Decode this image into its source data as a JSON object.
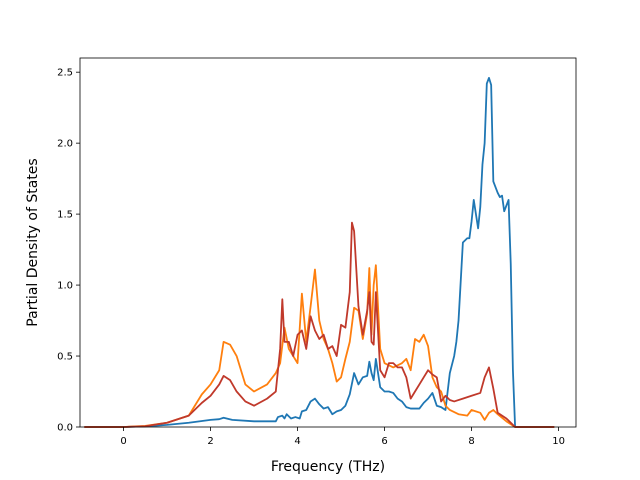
{
  "chart_data": {
    "type": "line",
    "title": "",
    "xlabel": "Frequency (THz)",
    "ylabel": "Partial Density of States",
    "xlim": [
      -1.0,
      10.4
    ],
    "ylim": [
      0,
      2.6
    ],
    "xticks": [
      0,
      2,
      4,
      6,
      8,
      10
    ],
    "yticks": [
      0.0,
      0.5,
      1.0,
      1.5,
      2.0,
      2.5
    ],
    "grid": false,
    "legend": "none",
    "series": [
      {
        "color": "#1f77b4",
        "x": [
          -0.9,
          0.0,
          0.5,
          1.0,
          1.5,
          2.0,
          2.2,
          2.3,
          2.5,
          3.0,
          3.5,
          3.55,
          3.65,
          3.7,
          3.75,
          3.85,
          3.95,
          4.05,
          4.1,
          4.2,
          4.3,
          4.4,
          4.5,
          4.6,
          4.7,
          4.8,
          4.9,
          5.0,
          5.1,
          5.2,
          5.3,
          5.4,
          5.5,
          5.6,
          5.65,
          5.7,
          5.75,
          5.8,
          5.9,
          6.0,
          6.1,
          6.2,
          6.3,
          6.4,
          6.5,
          6.6,
          6.7,
          6.8,
          6.9,
          7.0,
          7.1,
          7.2,
          7.3,
          7.4,
          7.5,
          7.6,
          7.65,
          7.7,
          7.8,
          7.9,
          7.95,
          8.0,
          8.05,
          8.1,
          8.15,
          8.2,
          8.25,
          8.3,
          8.35,
          8.4,
          8.45,
          8.5,
          8.6,
          8.65,
          8.7,
          8.75,
          8.8,
          8.85,
          8.9,
          8.95,
          9.0,
          9.9
        ],
        "y": [
          0.0,
          0.0,
          0.005,
          0.015,
          0.03,
          0.05,
          0.055,
          0.065,
          0.05,
          0.04,
          0.04,
          0.07,
          0.08,
          0.06,
          0.09,
          0.06,
          0.07,
          0.06,
          0.11,
          0.12,
          0.18,
          0.2,
          0.16,
          0.13,
          0.14,
          0.09,
          0.11,
          0.12,
          0.15,
          0.23,
          0.38,
          0.3,
          0.35,
          0.36,
          0.46,
          0.38,
          0.33,
          0.48,
          0.28,
          0.25,
          0.25,
          0.24,
          0.2,
          0.18,
          0.14,
          0.13,
          0.13,
          0.13,
          0.17,
          0.2,
          0.24,
          0.15,
          0.14,
          0.12,
          0.38,
          0.5,
          0.6,
          0.75,
          1.3,
          1.33,
          1.33,
          1.45,
          1.6,
          1.5,
          1.4,
          1.55,
          1.85,
          2.0,
          2.42,
          2.46,
          2.41,
          1.73,
          1.65,
          1.62,
          1.63,
          1.52,
          1.56,
          1.6,
          1.15,
          0.4,
          0.0,
          0.0
        ]
      },
      {
        "color": "#ff7f0e",
        "x": [
          -0.9,
          0.0,
          0.5,
          1.0,
          1.5,
          1.8,
          2.0,
          2.2,
          2.3,
          2.45,
          2.6,
          2.8,
          3.0,
          3.3,
          3.5,
          3.6,
          3.7,
          3.8,
          3.9,
          4.0,
          4.1,
          4.2,
          4.3,
          4.4,
          4.5,
          4.6,
          4.7,
          4.8,
          4.9,
          5.0,
          5.1,
          5.2,
          5.3,
          5.4,
          5.5,
          5.6,
          5.65,
          5.7,
          5.75,
          5.8,
          5.9,
          6.0,
          6.2,
          6.4,
          6.5,
          6.6,
          6.7,
          6.8,
          6.9,
          7.0,
          7.1,
          7.2,
          7.3,
          7.4,
          7.5,
          7.7,
          7.9,
          8.0,
          8.2,
          8.3,
          8.4,
          8.5,
          8.6,
          8.8,
          9.0,
          9.9
        ],
        "y": [
          0.0,
          0.0,
          0.008,
          0.03,
          0.08,
          0.23,
          0.3,
          0.4,
          0.6,
          0.58,
          0.5,
          0.3,
          0.25,
          0.3,
          0.38,
          0.45,
          0.7,
          0.55,
          0.5,
          0.45,
          0.94,
          0.6,
          0.85,
          1.11,
          0.75,
          0.62,
          0.55,
          0.45,
          0.32,
          0.35,
          0.48,
          0.6,
          0.84,
          0.82,
          0.62,
          0.8,
          1.12,
          0.65,
          1.0,
          1.14,
          0.55,
          0.45,
          0.42,
          0.45,
          0.48,
          0.4,
          0.62,
          0.6,
          0.65,
          0.57,
          0.35,
          0.28,
          0.25,
          0.15,
          0.12,
          0.09,
          0.08,
          0.12,
          0.1,
          0.05,
          0.1,
          0.12,
          0.09,
          0.04,
          0.0,
          0.0
        ]
      },
      {
        "color": "#c0392b",
        "x": [
          -0.9,
          0.0,
          0.5,
          1.0,
          1.5,
          1.8,
          2.0,
          2.2,
          2.3,
          2.45,
          2.6,
          2.8,
          3.0,
          3.3,
          3.5,
          3.6,
          3.65,
          3.7,
          3.8,
          3.9,
          4.0,
          4.1,
          4.2,
          4.3,
          4.4,
          4.5,
          4.6,
          4.7,
          4.8,
          4.9,
          5.0,
          5.1,
          5.2,
          5.25,
          5.3,
          5.4,
          5.5,
          5.6,
          5.65,
          5.7,
          5.75,
          5.8,
          5.9,
          6.0,
          6.1,
          6.2,
          6.3,
          6.4,
          6.5,
          6.6,
          6.7,
          6.8,
          6.9,
          7.0,
          7.1,
          7.2,
          7.3,
          7.4,
          7.5,
          7.6,
          7.8,
          8.0,
          8.2,
          8.3,
          8.4,
          8.5,
          8.6,
          8.8,
          9.0,
          9.9
        ],
        "y": [
          0.0,
          0.0,
          0.005,
          0.03,
          0.08,
          0.17,
          0.22,
          0.3,
          0.36,
          0.33,
          0.25,
          0.18,
          0.15,
          0.2,
          0.25,
          0.55,
          0.9,
          0.6,
          0.6,
          0.5,
          0.65,
          0.68,
          0.55,
          0.78,
          0.68,
          0.62,
          0.65,
          0.55,
          0.57,
          0.5,
          0.72,
          0.7,
          0.95,
          1.44,
          1.38,
          0.85,
          0.65,
          0.82,
          0.95,
          0.6,
          0.58,
          0.95,
          0.4,
          0.35,
          0.45,
          0.45,
          0.42,
          0.42,
          0.35,
          0.2,
          0.25,
          0.3,
          0.35,
          0.4,
          0.37,
          0.35,
          0.18,
          0.22,
          0.19,
          0.18,
          0.2,
          0.22,
          0.24,
          0.35,
          0.42,
          0.27,
          0.1,
          0.06,
          0.0,
          0.0
        ]
      }
    ]
  }
}
